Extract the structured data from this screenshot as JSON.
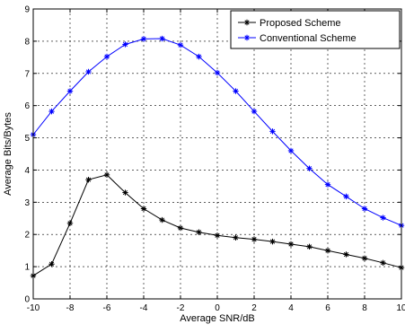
{
  "chart_data": {
    "type": "line",
    "xlabel": "Average SNR/dB",
    "ylabel": "Average Bits/Bytes",
    "xlim": [
      -10,
      10
    ],
    "ylim": [
      0,
      9
    ],
    "x_ticks": [
      -10,
      -8,
      -6,
      -4,
      -2,
      0,
      2,
      4,
      6,
      8,
      10
    ],
    "y_ticks": [
      0,
      1,
      2,
      3,
      4,
      5,
      6,
      7,
      8,
      9
    ],
    "grid": true,
    "legend_position": "top-right",
    "x": [
      -10,
      -9,
      -8,
      -7,
      -6,
      -5,
      -4,
      -3,
      -2,
      -1,
      0,
      1,
      2,
      3,
      4,
      5,
      6,
      7,
      8,
      9,
      10
    ],
    "series": [
      {
        "name": "Proposed Scheme",
        "color": "#000000",
        "marker": "asterisk",
        "values": [
          0.72,
          1.08,
          2.35,
          3.7,
          3.85,
          3.3,
          2.8,
          2.45,
          2.2,
          2.07,
          1.97,
          1.9,
          1.85,
          1.78,
          1.7,
          1.62,
          1.5,
          1.38,
          1.26,
          1.12,
          0.97
        ]
      },
      {
        "name": "Conventional Scheme",
        "color": "#0000ff",
        "marker": "asterisk",
        "values": [
          5.1,
          5.82,
          6.45,
          7.05,
          7.52,
          7.9,
          8.07,
          8.08,
          7.88,
          7.52,
          7.02,
          6.45,
          5.82,
          5.2,
          4.6,
          4.05,
          3.55,
          3.18,
          2.8,
          2.52,
          2.28
        ]
      }
    ]
  }
}
